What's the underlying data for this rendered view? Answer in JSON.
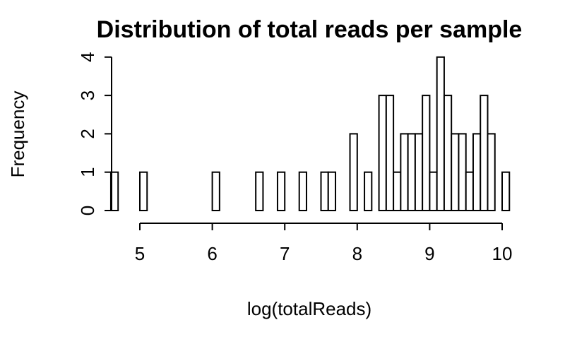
{
  "chart_data": {
    "type": "bar",
    "title": "Distribution of total reads per sample",
    "xlabel": "log(totalReads)",
    "ylabel": "Frequency",
    "bin_width": 0.1,
    "xlim": [
      4.6,
      10.1
    ],
    "ylim": [
      0,
      4
    ],
    "x_ticks": [
      5,
      6,
      7,
      8,
      9,
      10
    ],
    "y_ticks": [
      0,
      1,
      2,
      3,
      4
    ],
    "bins": [
      {
        "start": 4.6,
        "count": 1
      },
      {
        "start": 5.0,
        "count": 1
      },
      {
        "start": 6.0,
        "count": 1
      },
      {
        "start": 6.6,
        "count": 1
      },
      {
        "start": 6.9,
        "count": 1
      },
      {
        "start": 7.2,
        "count": 1
      },
      {
        "start": 7.5,
        "count": 1
      },
      {
        "start": 7.6,
        "count": 1
      },
      {
        "start": 7.9,
        "count": 2
      },
      {
        "start": 8.1,
        "count": 1
      },
      {
        "start": 8.3,
        "count": 3
      },
      {
        "start": 8.4,
        "count": 3
      },
      {
        "start": 8.5,
        "count": 1
      },
      {
        "start": 8.6,
        "count": 2
      },
      {
        "start": 8.7,
        "count": 2
      },
      {
        "start": 8.8,
        "count": 2
      },
      {
        "start": 8.9,
        "count": 3
      },
      {
        "start": 9.0,
        "count": 1
      },
      {
        "start": 9.1,
        "count": 4
      },
      {
        "start": 9.2,
        "count": 3
      },
      {
        "start": 9.3,
        "count": 2
      },
      {
        "start": 9.4,
        "count": 2
      },
      {
        "start": 9.5,
        "count": 1
      },
      {
        "start": 9.6,
        "count": 2
      },
      {
        "start": 9.7,
        "count": 3
      },
      {
        "start": 9.8,
        "count": 2
      },
      {
        "start": 10.0,
        "count": 1
      }
    ]
  }
}
